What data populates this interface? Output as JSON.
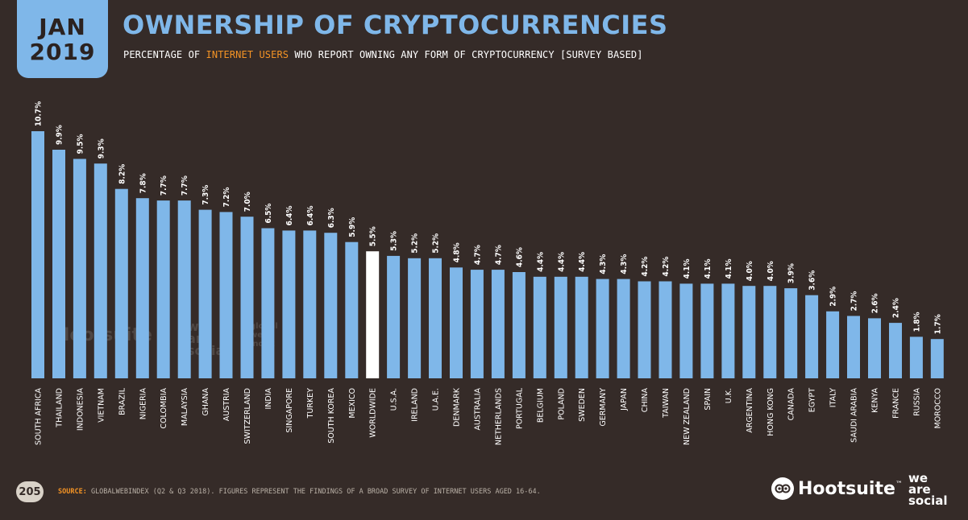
{
  "header": {
    "month": "JAN",
    "year": "2019",
    "title": "OWNERSHIP OF CRYPTOCURRENCIES",
    "subtitle_pre": "PERCENTAGE OF ",
    "subtitle_highlight": "INTERNET USERS",
    "subtitle_post": " WHO REPORT OWNING ANY FORM OF CRYPTOCURRENCY [SURVEY BASED]"
  },
  "footer": {
    "page_number": "205",
    "source_label": "SOURCE:",
    "source_text": " GLOBALWEBINDEX (Q2 & Q3 2018). FIGURES REPRESENT THE FINDINGS OF A BROAD SURVEY OF INTERNET USERS AGED 16-64.",
    "brand_hootsuite": "Hootsuite",
    "brand_tm": "™",
    "brand_was_1": "we",
    "brand_was_2": "are",
    "brand_was_3": "social"
  },
  "watermarks": {
    "hootsuite": "Hootsuite",
    "was_1": "we",
    "was_2": "are",
    "was_3": "social",
    "gwi_1": "global",
    "gwi_2": "web",
    "gwi_3": "index"
  },
  "colors": {
    "background": "#352b28",
    "bar": "#7fb7e9",
    "bar_highlight": "#ffffff",
    "accent": "#f39325"
  },
  "chart_data": {
    "type": "bar",
    "categories": [
      "SOUTH AFRICA",
      "THAILAND",
      "INDONESIA",
      "VIETNAM",
      "BRAZIL",
      "NIGERIA",
      "COLOMBIA",
      "MALAYSIA",
      "GHANA",
      "AUSTRIA",
      "SWITZERLAND",
      "INDIA",
      "SINGAPORE",
      "TURKEY",
      "SOUTH KOREA",
      "MEXICO",
      "WORLDWIDE",
      "U.S.A.",
      "IRELAND",
      "U.A.E.",
      "DENMARK",
      "AUSTRALIA",
      "NETHERLANDS",
      "PORTUGAL",
      "BELGIUM",
      "POLAND",
      "SWEDEN",
      "GERMANY",
      "JAPAN",
      "CHINA",
      "TAIWAN",
      "NEW ZEALAND",
      "SPAIN",
      "U.K.",
      "ARGENTINA",
      "HONG KONG",
      "CANADA",
      "EGYPT",
      "ITALY",
      "SAUDI ARABIA",
      "KENYA",
      "FRANCE",
      "RUSSIA",
      "MOROCCO"
    ],
    "values": [
      10.7,
      9.9,
      9.5,
      9.3,
      8.2,
      7.8,
      7.7,
      7.7,
      7.3,
      7.2,
      7.0,
      6.5,
      6.4,
      6.4,
      6.3,
      5.9,
      5.5,
      5.3,
      5.2,
      5.2,
      4.8,
      4.7,
      4.7,
      4.6,
      4.4,
      4.4,
      4.4,
      4.3,
      4.3,
      4.2,
      4.2,
      4.1,
      4.1,
      4.1,
      4.0,
      4.0,
      3.9,
      3.6,
      2.9,
      2.7,
      2.6,
      2.4,
      1.8,
      1.7
    ],
    "value_labels": [
      "10.7%",
      "9.9%",
      "9.5%",
      "9.3%",
      "8.2%",
      "7.8%",
      "7.7%",
      "7.7%",
      "7.3%",
      "7.2%",
      "7.0%",
      "6.5%",
      "6.4%",
      "6.4%",
      "6.3%",
      "5.9%",
      "5.5%",
      "5.3%",
      "5.2%",
      "5.2%",
      "4.8%",
      "4.7%",
      "4.7%",
      "4.6%",
      "4.4%",
      "4.4%",
      "4.4%",
      "4.3%",
      "4.3%",
      "4.2%",
      "4.2%",
      "4.1%",
      "4.1%",
      "4.1%",
      "4.0%",
      "4.0%",
      "3.9%",
      "3.6%",
      "2.9%",
      "2.7%",
      "2.6%",
      "2.4%",
      "1.8%",
      "1.7%"
    ],
    "highlight_category": "WORLDWIDE",
    "ylim": [
      0,
      10.7
    ],
    "grid": false,
    "legend": "none"
  }
}
